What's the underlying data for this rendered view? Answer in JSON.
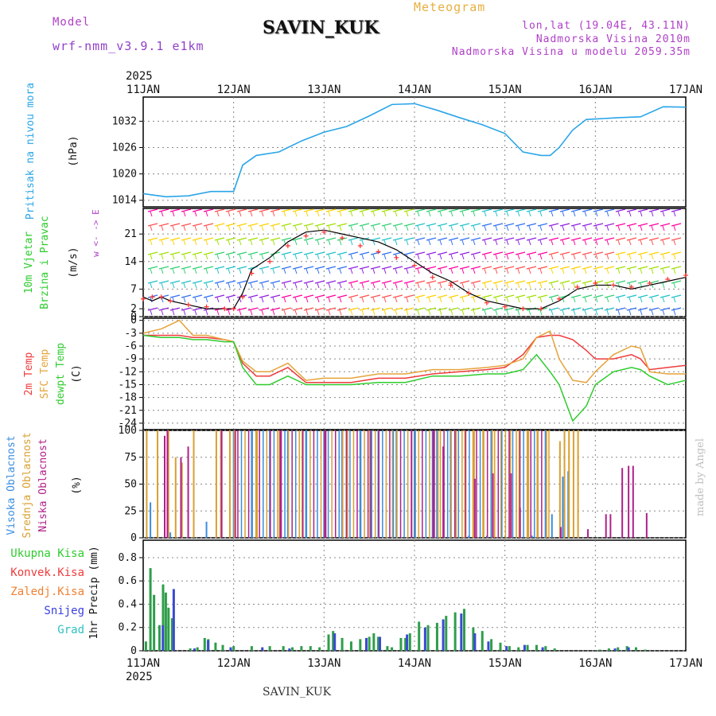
{
  "header": {
    "model_label": "Model",
    "model_name": "wrf-nmm_v3.9.1 e1km",
    "title": "SAVIN_KUK",
    "product": "Meteogram",
    "lonlat": "lon,lat (19.04E, 43.11N)",
    "elevation": "Nadmorska Visina 2010m",
    "model_elevation": "Nadmorska Visina u modelu 2059.35m",
    "year_top": "2025",
    "year_bottom": "2025",
    "footer": "SAVIN_KUK",
    "watermark": "made by Angel"
  },
  "colors": {
    "pressure": "#2aa5e8",
    "t2m": "#ef3b3b",
    "tsfc": "#e6a33a",
    "dewpt": "#2ecc2e",
    "cloud_high": "#3a8de0",
    "cloud_mid": "#d9a030",
    "cloud_low": "#b0208a",
    "precip_total": "#2e9e4a",
    "precip_snow": "#3a4ad0",
    "purple_text": "#b040c8",
    "orange_text": "#e6b040"
  },
  "chart_data": [
    {
      "type": "line",
      "panel": "pressure",
      "ylabel": [
        "Pritisak na nivou mora",
        "(hPa)"
      ],
      "yticks": [
        1014,
        1020,
        1026,
        1032
      ],
      "ylim": [
        1012.5,
        1037.5
      ],
      "x_ticks": [
        "11JAN",
        "12JAN",
        "13JAN",
        "14JAN",
        "15JAN",
        "16JAN",
        "17JAN"
      ],
      "x_days": [
        0,
        0.25,
        0.5,
        0.75,
        1.0,
        1.1,
        1.25,
        1.5,
        1.75,
        2.0,
        2.25,
        2.5,
        2.75,
        3.0,
        3.25,
        3.5,
        3.75,
        4.0,
        4.2,
        4.4,
        4.5,
        4.6,
        4.75,
        4.9,
        5.0,
        5.25,
        5.5,
        5.75,
        6.0
      ],
      "values": [
        1015.5,
        1014.8,
        1015.0,
        1016.0,
        1016.0,
        1022.0,
        1024.2,
        1025.0,
        1027.5,
        1029.5,
        1030.8,
        1033.2,
        1035.8,
        1036.0,
        1034.5,
        1032.8,
        1031.2,
        1029.2,
        1025.0,
        1024.2,
        1024.2,
        1026.0,
        1030.0,
        1032.4,
        1032.5,
        1032.8,
        1033.0,
        1035.3,
        1035.2
      ]
    },
    {
      "type": "line",
      "panel": "wind",
      "ylabel": [
        "10m Vjetar",
        "Brzina i Pravac",
        "(m/s)"
      ],
      "direction_key": [
        "N",
        "w <- -> E",
        "S"
      ],
      "yticks": [
        0,
        2,
        7,
        14,
        21
      ],
      "ylim": [
        0,
        27.5
      ],
      "speed_x": [
        0,
        0.1,
        0.2,
        0.3,
        0.5,
        0.7,
        0.9,
        1.0,
        1.1,
        1.2,
        1.4,
        1.6,
        1.8,
        2.0,
        2.2,
        2.4,
        2.6,
        2.8,
        3.0,
        3.2,
        3.4,
        3.6,
        3.8,
        4.0,
        4.2,
        4.4,
        4.6,
        4.8,
        5.0,
        5.2,
        5.4,
        5.6,
        5.8,
        6.0
      ],
      "speed_10m": [
        5,
        4,
        5,
        4,
        3,
        2,
        2,
        2,
        6,
        12,
        15,
        19,
        21.5,
        22,
        21,
        20,
        19,
        17,
        14,
        11,
        9,
        6,
        4,
        3,
        2,
        2,
        4,
        7,
        8,
        8,
        7,
        8,
        9,
        10
      ],
      "speed_gust": [
        4.5,
        5,
        5,
        4,
        3,
        2.5,
        2,
        2,
        5,
        11,
        14,
        18,
        20.5,
        21.5,
        20,
        18,
        16.5,
        15,
        13,
        10,
        8,
        6,
        3.5,
        2.5,
        2,
        2,
        4.5,
        7.5,
        8.5,
        8,
        7.5,
        8.5,
        9.5,
        10.5
      ]
    },
    {
      "type": "line",
      "panel": "temperature",
      "ylabel": [
        "2m Temp",
        "SFC Temp",
        "dewpt Temp",
        "(C)"
      ],
      "yticks": [
        0,
        -3,
        -6,
        -9,
        -12,
        -15,
        -18,
        -21,
        -24
      ],
      "ylim": [
        -25.5,
        0.5
      ],
      "x_days": [
        0,
        0.2,
        0.4,
        0.55,
        0.7,
        0.9,
        1.0,
        1.1,
        1.25,
        1.4,
        1.6,
        1.8,
        2.0,
        2.3,
        2.6,
        2.9,
        3.2,
        3.5,
        3.8,
        4.0,
        4.2,
        4.35,
        4.5,
        4.6,
        4.75,
        4.9,
        5.0,
        5.2,
        5.4,
        5.5,
        5.6,
        5.8,
        6.0
      ],
      "series": [
        {
          "name": "2m Temp",
          "values": [
            -3.5,
            -3.5,
            -3.5,
            -4,
            -4,
            -4.5,
            -5,
            -10,
            -13,
            -13,
            -11,
            -14.5,
            -14.5,
            -14.5,
            -13.5,
            -13.5,
            -12.5,
            -12,
            -11.5,
            -11,
            -8,
            -4,
            -3.5,
            -3.5,
            -4.5,
            -7,
            -9,
            -9,
            -8,
            -9,
            -11.5,
            -11,
            -10.5
          ]
        },
        {
          "name": "SFC Temp",
          "values": [
            -3,
            -2,
            0,
            -3.5,
            -3.5,
            -4.5,
            -5,
            -9.5,
            -12,
            -12,
            -10,
            -14,
            -13.5,
            -13.5,
            -12.5,
            -12.5,
            -11.5,
            -11.5,
            -11,
            -10.5,
            -9,
            -4,
            -2.5,
            -9,
            -14,
            -14.5,
            -12,
            -8,
            -6,
            -6.5,
            -12,
            -12.5,
            -12.5
          ]
        },
        {
          "name": "dewpt Temp",
          "values": [
            -3.5,
            -4,
            -4,
            -4.5,
            -4.5,
            -5,
            -5,
            -11,
            -15,
            -15,
            -13,
            -15,
            -15,
            -15,
            -14.5,
            -14.5,
            -13,
            -13,
            -12.5,
            -12.5,
            -11.5,
            -8,
            -12,
            -15,
            -23.5,
            -20,
            -15,
            -12,
            -11,
            -11.5,
            -13,
            -15,
            -14
          ]
        }
      ]
    },
    {
      "type": "bar",
      "panel": "clouds",
      "ylabel": [
        "Visoka Oblacnost",
        "Srednja Oblacnost",
        "Niska Oblacnost",
        "(%)"
      ],
      "yticks": [
        0,
        25,
        50,
        75,
        100
      ],
      "ylim": [
        0,
        100
      ],
      "series": [
        {
          "name": "Visoka Oblacnost",
          "x_days": [
            0.08,
            0.3,
            0.7,
            1.0,
            1.2,
            1.4,
            1.6,
            1.8,
            2.0,
            2.2,
            2.4,
            2.6,
            2.8,
            3.0,
            3.2,
            3.4,
            3.6,
            3.8,
            4.05,
            4.3,
            4.52,
            4.64,
            4.7
          ],
          "values": [
            33,
            5,
            15,
            100,
            100,
            100,
            100,
            100,
            100,
            100,
            100,
            100,
            100,
            100,
            100,
            100,
            2,
            2,
            2,
            2,
            22,
            57,
            62
          ]
        },
        {
          "name": "Srednja Oblacnost",
          "x_days": [
            0.03,
            0.15,
            0.27,
            0.35,
            0.42,
            0.55,
            0.8,
            0.85,
            0.95,
            1.0,
            1.25,
            1.5,
            1.75,
            2.0,
            2.25,
            2.5,
            2.75,
            3.0,
            3.25,
            3.45,
            3.55,
            3.65,
            3.75,
            3.85,
            3.95,
            4.05,
            4.15,
            4.25,
            4.35,
            4.45,
            4.6,
            4.65,
            4.7,
            4.75,
            4.8
          ],
          "values": [
            100,
            100,
            100,
            75,
            70,
            100,
            100,
            100,
            100,
            100,
            100,
            100,
            100,
            100,
            100,
            100,
            100,
            100,
            100,
            100,
            100,
            100,
            100,
            100,
            100,
            100,
            100,
            100,
            100,
            100,
            90,
            100,
            100,
            100,
            100
          ]
        },
        {
          "name": "Niska Oblacnost",
          "x_days": [
            0.22,
            0.25,
            0.4,
            0.48,
            0.85,
            1.0,
            1.5,
            2.0,
            2.5,
            2.95,
            3.2,
            3.3,
            3.65,
            3.85,
            4.05,
            4.15,
            4.6,
            4.9,
            5.1,
            5.15,
            5.28,
            5.35,
            5.4,
            5.55
          ],
          "values": [
            95,
            100,
            75,
            85,
            100,
            100,
            100,
            100,
            100,
            100,
            100,
            85,
            55,
            60,
            60,
            28,
            10,
            8,
            22,
            22,
            65,
            67,
            67,
            23
          ]
        }
      ]
    },
    {
      "type": "bar",
      "panel": "precipitation",
      "ylabel": [
        "1hr Precip (mm)"
      ],
      "legend": [
        "Ukupna Kisa",
        "Konvek.Kisa",
        "Zaledj.Kisa",
        "Snijeg",
        "Grad"
      ],
      "yticks": [
        0,
        0.2,
        0.4,
        0.6,
        0.8
      ],
      "ylim": [
        0,
        0.95
      ],
      "series": [
        {
          "name": "Ukupna Kisa",
          "x_days": [
            0.03,
            0.08,
            0.12,
            0.18,
            0.22,
            0.25,
            0.28,
            0.32,
            0.35,
            0.42,
            0.52,
            0.6,
            0.68,
            0.72,
            0.8,
            0.88,
            1.0,
            1.2,
            1.4,
            1.55,
            1.65,
            1.75,
            1.85,
            1.95,
            2.05,
            2.1,
            2.2,
            2.3,
            2.4,
            2.5,
            2.55,
            2.6,
            2.7,
            2.75,
            2.85,
            2.9,
            2.95,
            3.05,
            3.15,
            3.25,
            3.35,
            3.45,
            3.55,
            3.65,
            3.75,
            3.85,
            3.95,
            4.05,
            4.15,
            4.25,
            4.35,
            4.45,
            4.55,
            4.65,
            4.75,
            4.85,
            4.95,
            5.05,
            5.15,
            5.25,
            5.35,
            5.45,
            5.55,
            5.65,
            5.75,
            5.85,
            5.95
          ],
          "values": [
            0.08,
            0.71,
            0.48,
            0.22,
            0.57,
            0.5,
            0.37,
            0.28,
            0.0,
            0.0,
            0.02,
            0.03,
            0.11,
            0.1,
            0.07,
            0.05,
            0.04,
            0.04,
            0.04,
            0.04,
            0.03,
            0.04,
            0.04,
            0.03,
            0.14,
            0.17,
            0.11,
            0.08,
            0.1,
            0.12,
            0.15,
            0.12,
            0.04,
            0.03,
            0.11,
            0.11,
            0.15,
            0.25,
            0.22,
            0.24,
            0.3,
            0.33,
            0.36,
            0.2,
            0.17,
            0.1,
            0.07,
            0.04,
            0.03,
            0.05,
            0.05,
            0.04,
            0.02,
            0.0,
            0.0,
            0.0,
            0.0,
            0.01,
            0.02,
            0.03,
            0.04,
            0.03,
            0.01,
            0.0,
            0.0,
            0.0,
            0.0
          ]
        },
        {
          "name": "Snijeg",
          "x_days": [
            0.2,
            0.32,
            0.55,
            0.7,
            0.95,
            1.3,
            1.6,
            2.1,
            2.45,
            2.6,
            2.9,
            3.1,
            3.3,
            3.5,
            3.65,
            3.8,
            4.0,
            4.2,
            4.4,
            5.2,
            5.35
          ],
          "values": [
            0.22,
            0.53,
            0.02,
            0.09,
            0.03,
            0.03,
            0.02,
            0.15,
            0.11,
            0.12,
            0.14,
            0.2,
            0.27,
            0.32,
            0.15,
            0.08,
            0.04,
            0.05,
            0.03,
            0.02,
            0.03
          ]
        }
      ]
    }
  ]
}
